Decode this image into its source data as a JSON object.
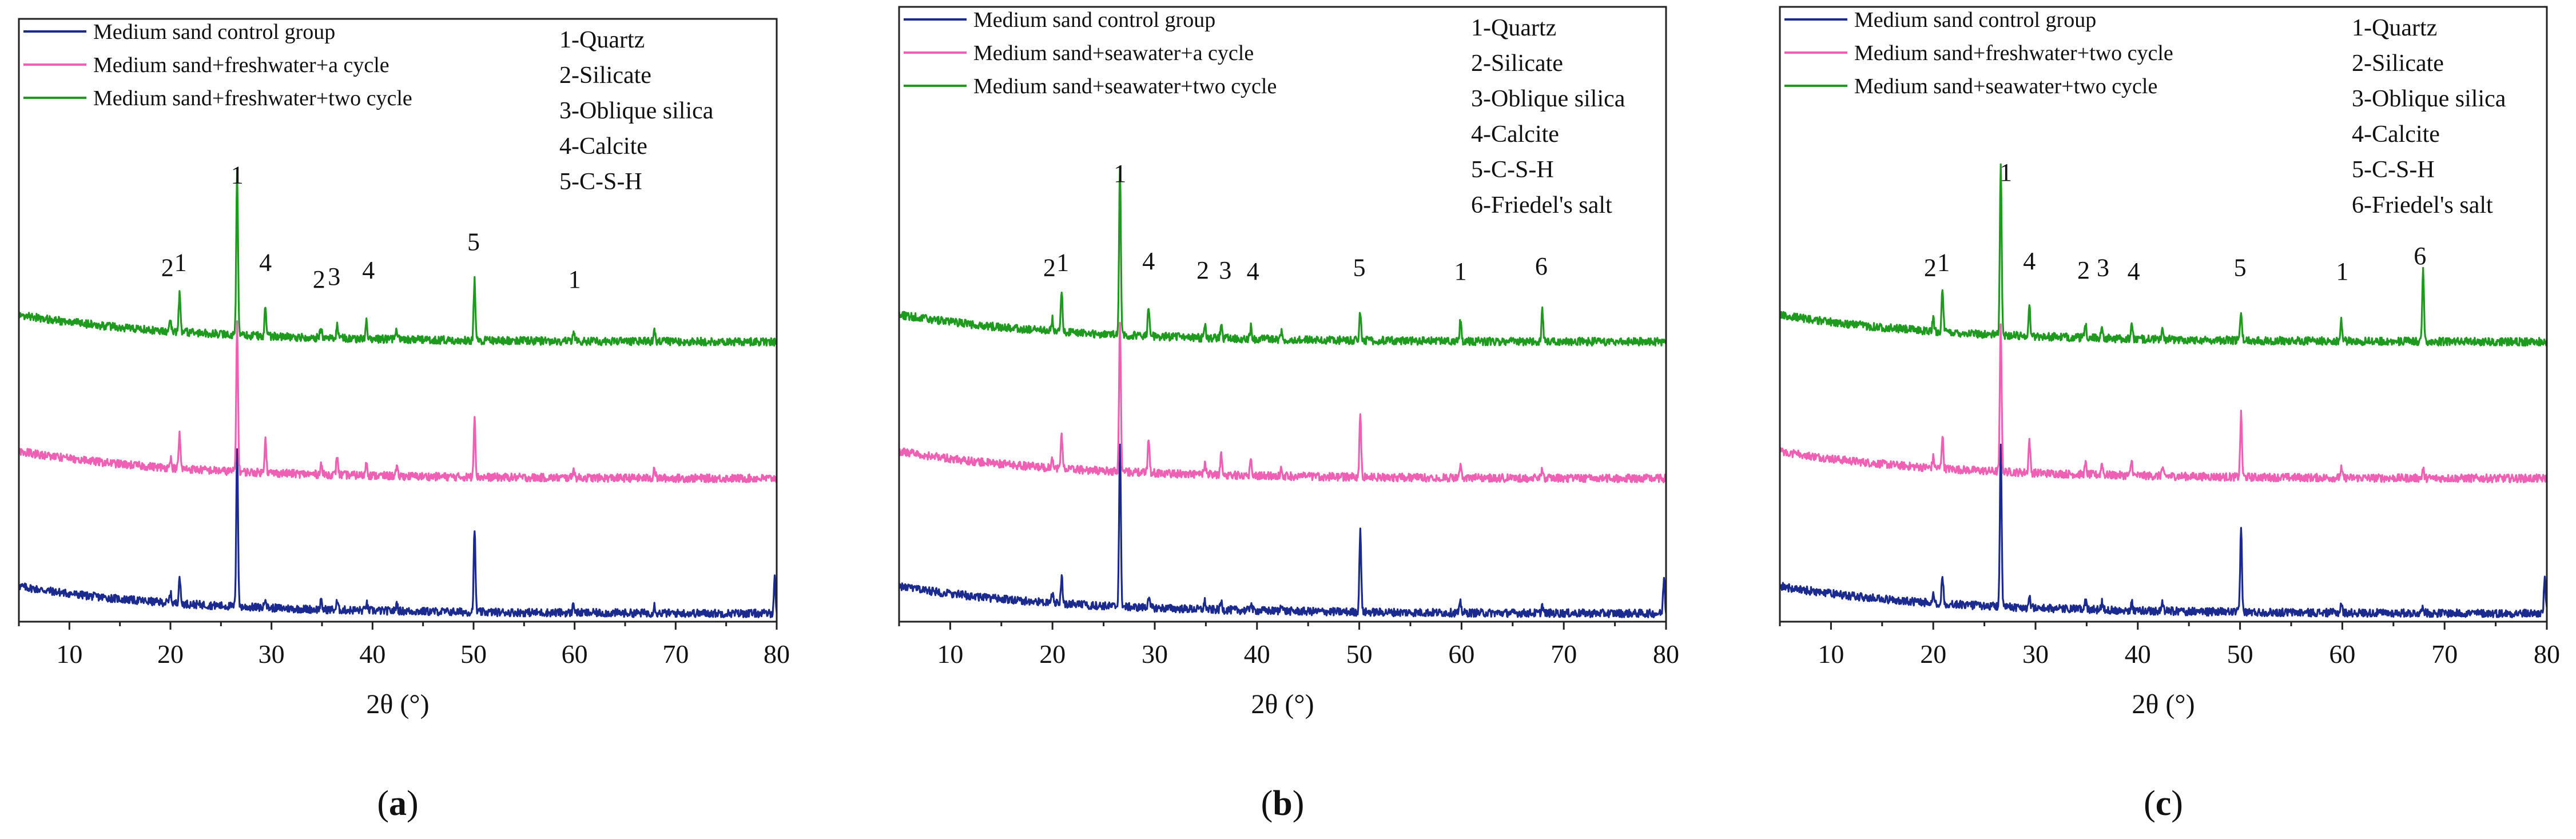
{
  "chart_data": [
    {
      "type": "line",
      "panel_label_prefix": "(",
      "panel_label_letter": "a",
      "panel_label_suffix": ")",
      "xlabel": "2θ (°)",
      "ylabel": "",
      "xlim": [
        5,
        80
      ],
      "xticks": [
        "10",
        "20",
        "30",
        "40",
        "50",
        "60",
        "70",
        "80"
      ],
      "legend": [
        {
          "name": "Medium sand control group",
          "color": "#1b2a8f"
        },
        {
          "name": "Medium sand+freshwater+a cycle",
          "color": "#ef5fb3"
        },
        {
          "name": "Medium sand+freshwater+two cycle",
          "color": "#1e9a1e"
        }
      ],
      "phases": [
        "1-Quartz",
        "2-Silicate",
        "3-Oblique silica",
        "4-Calcite",
        "5-C-S-H"
      ],
      "series": [
        {
          "name": "Medium sand control group",
          "color": "#1b2a8f",
          "offset": 0,
          "peaks": [
            [
              20.0,
              0.06
            ],
            [
              20.9,
              0.17
            ],
            [
              26.6,
              1.0
            ],
            [
              29.4,
              0.07
            ],
            [
              34.9,
              0.05
            ],
            [
              36.5,
              0.05
            ],
            [
              39.4,
              0.05
            ],
            [
              42.4,
              0.05
            ],
            [
              50.1,
              0.52
            ],
            [
              59.9,
              0.06
            ],
            [
              67.9,
              0.05
            ],
            [
              79.8,
              0.22
            ]
          ]
        },
        {
          "name": "Medium sand+freshwater+a cycle",
          "color": "#ef5fb3",
          "offset": 1,
          "peaks": [
            [
              20.0,
              0.07
            ],
            [
              20.9,
              0.23
            ],
            [
              26.6,
              1.0
            ],
            [
              29.4,
              0.24
            ],
            [
              34.9,
              0.08
            ],
            [
              36.5,
              0.13
            ],
            [
              39.4,
              0.1
            ],
            [
              42.4,
              0.05
            ],
            [
              50.1,
              0.42
            ],
            [
              59.9,
              0.07
            ],
            [
              67.9,
              0.07
            ]
          ]
        },
        {
          "name": "Medium sand+freshwater+two cycle",
          "color": "#1e9a1e",
          "offset": 2,
          "peaks": [
            [
              20.0,
              0.07
            ],
            [
              20.9,
              0.22
            ],
            [
              26.6,
              0.95
            ],
            [
              29.4,
              0.17
            ],
            [
              34.9,
              0.06
            ],
            [
              36.5,
              0.07
            ],
            [
              39.4,
              0.11
            ],
            [
              42.4,
              0.05
            ],
            [
              50.1,
              0.36
            ],
            [
              59.9,
              0.05
            ],
            [
              67.9,
              0.06
            ]
          ]
        }
      ],
      "annotations": [
        {
          "text": "2",
          "x": 19.7,
          "level": 0.95
        },
        {
          "text": "1",
          "x": 21.0,
          "level": 1.05
        },
        {
          "text": "1",
          "x": 26.6,
          "level": 2.75
        },
        {
          "text": "4",
          "x": 29.4,
          "level": 1.05
        },
        {
          "text": "2",
          "x": 34.7,
          "level": 0.72
        },
        {
          "text": "3",
          "x": 36.2,
          "level": 0.78
        },
        {
          "text": "4",
          "x": 39.6,
          "level": 0.9
        },
        {
          "text": "5",
          "x": 50.0,
          "level": 1.45
        },
        {
          "text": "1",
          "x": 60.0,
          "level": 0.72
        }
      ]
    },
    {
      "type": "line",
      "panel_label_prefix": "(",
      "panel_label_letter": "b",
      "panel_label_suffix": ")",
      "xlabel": "2θ (°)",
      "ylabel": "",
      "xlim": [
        5,
        80
      ],
      "xticks": [
        "10",
        "20",
        "30",
        "40",
        "50",
        "60",
        "70",
        "80"
      ],
      "legend": [
        {
          "name": "Medium sand control group",
          "color": "#1b2a8f"
        },
        {
          "name": "Medium sand+seawater+a cycle",
          "color": "#ef5fb3"
        },
        {
          "name": "Medium sand+seawater+two cycle",
          "color": "#1e9a1e"
        }
      ],
      "phases": [
        "1-Quartz",
        "2-Silicate",
        "3-Oblique silica",
        "4-Calcite",
        "5-C-S-H",
        "6-Friedel's salt"
      ],
      "series": [
        {
          "name": "Medium sand control group",
          "color": "#1b2a8f",
          "offset": 0,
          "peaks": [
            [
              20.0,
              0.06
            ],
            [
              20.9,
              0.17
            ],
            [
              26.6,
              1.0
            ],
            [
              29.4,
              0.07
            ],
            [
              34.9,
              0.05
            ],
            [
              36.5,
              0.05
            ],
            [
              39.4,
              0.05
            ],
            [
              42.4,
              0.05
            ],
            [
              50.1,
              0.52
            ],
            [
              59.9,
              0.06
            ],
            [
              67.9,
              0.05
            ],
            [
              79.8,
              0.22
            ]
          ]
        },
        {
          "name": "Medium sand+seawater+a cycle",
          "color": "#ef5fb3",
          "offset": 1,
          "peaks": [
            [
              20.0,
              0.07
            ],
            [
              20.9,
              0.23
            ],
            [
              26.6,
              1.0
            ],
            [
              29.4,
              0.24
            ],
            [
              34.9,
              0.07
            ],
            [
              36.5,
              0.13
            ],
            [
              39.4,
              0.1
            ],
            [
              42.4,
              0.05
            ],
            [
              50.1,
              0.42
            ],
            [
              59.9,
              0.07
            ],
            [
              67.9,
              0.07
            ]
          ]
        },
        {
          "name": "Medium sand+seawater+two cycle",
          "color": "#1e9a1e",
          "offset": 2,
          "peaks": [
            [
              20.0,
              0.07
            ],
            [
              20.9,
              0.24
            ],
            [
              26.6,
              1.0
            ],
            [
              29.4,
              0.17
            ],
            [
              34.9,
              0.07
            ],
            [
              36.5,
              0.07
            ],
            [
              39.4,
              0.07
            ],
            [
              42.4,
              0.05
            ],
            [
              50.1,
              0.17
            ],
            [
              59.9,
              0.12
            ],
            [
              67.9,
              0.18
            ]
          ]
        }
      ],
      "annotations": [
        {
          "text": "2",
          "x": 19.7,
          "level": 0.95
        },
        {
          "text": "1",
          "x": 21.0,
          "level": 1.05
        },
        {
          "text": "1",
          "x": 26.6,
          "level": 2.78
        },
        {
          "text": "4",
          "x": 29.4,
          "level": 1.08
        },
        {
          "text": "2",
          "x": 34.7,
          "level": 0.9
        },
        {
          "text": "3",
          "x": 36.9,
          "level": 0.9
        },
        {
          "text": "4",
          "x": 39.6,
          "level": 0.88
        },
        {
          "text": "5",
          "x": 50.0,
          "level": 0.95
        },
        {
          "text": "1",
          "x": 59.9,
          "level": 0.88
        },
        {
          "text": "6",
          "x": 67.8,
          "level": 0.98
        }
      ]
    },
    {
      "type": "line",
      "panel_label_prefix": "(",
      "panel_label_letter": "c",
      "panel_label_suffix": ")",
      "xlabel": "2θ (°)",
      "ylabel": "",
      "xlim": [
        5,
        80
      ],
      "xticks": [
        "10",
        "20",
        "30",
        "40",
        "50",
        "60",
        "70",
        "80"
      ],
      "legend": [
        {
          "name": "Medium sand control group",
          "color": "#1b2a8f"
        },
        {
          "name": "Medium sand+freshwater+two cycle",
          "color": "#ef5fb3"
        },
        {
          "name": "Medium sand+seawater+two cycle",
          "color": "#1e9a1e"
        }
      ],
      "phases": [
        "1-Quartz",
        "2-Silicate",
        "3-Oblique silica",
        "4-Calcite",
        "5-C-S-H",
        "6-Friedel's salt"
      ],
      "series": [
        {
          "name": "Medium sand control group",
          "color": "#1b2a8f",
          "offset": 0,
          "peaks": [
            [
              20.0,
              0.06
            ],
            [
              20.9,
              0.17
            ],
            [
              26.6,
              1.0
            ],
            [
              29.4,
              0.07
            ],
            [
              34.9,
              0.05
            ],
            [
              36.5,
              0.05
            ],
            [
              39.4,
              0.05
            ],
            [
              42.4,
              0.05
            ],
            [
              50.1,
              0.52
            ],
            [
              59.9,
              0.06
            ],
            [
              67.9,
              0.05
            ],
            [
              79.8,
              0.22
            ]
          ]
        },
        {
          "name": "Medium sand+freshwater+two cycle",
          "color": "#ef5fb3",
          "offset": 1,
          "peaks": [
            [
              20.0,
              0.07
            ],
            [
              20.9,
              0.22
            ],
            [
              26.6,
              1.0
            ],
            [
              29.4,
              0.22
            ],
            [
              34.9,
              0.07
            ],
            [
              36.5,
              0.08
            ],
            [
              39.4,
              0.1
            ],
            [
              42.4,
              0.05
            ],
            [
              50.1,
              0.42
            ],
            [
              59.9,
              0.06
            ],
            [
              67.9,
              0.06
            ]
          ]
        },
        {
          "name": "Medium sand+seawater+two cycle",
          "color": "#1e9a1e",
          "offset": 2,
          "peaks": [
            [
              20.0,
              0.07
            ],
            [
              20.9,
              0.24
            ],
            [
              26.6,
              1.0
            ],
            [
              29.4,
              0.17
            ],
            [
              34.9,
              0.07
            ],
            [
              36.5,
              0.07
            ],
            [
              39.4,
              0.07
            ],
            [
              42.4,
              0.05
            ],
            [
              50.1,
              0.17
            ],
            [
              59.9,
              0.12
            ],
            [
              67.9,
              0.43
            ]
          ]
        }
      ],
      "annotations": [
        {
          "text": "2",
          "x": 19.7,
          "level": 0.95
        },
        {
          "text": "1",
          "x": 21.0,
          "level": 1.05
        },
        {
          "text": "1",
          "x": 27.1,
          "level": 2.8
        },
        {
          "text": "4",
          "x": 29.4,
          "level": 1.08
        },
        {
          "text": "2",
          "x": 34.7,
          "level": 0.9
        },
        {
          "text": "3",
          "x": 36.6,
          "level": 0.95
        },
        {
          "text": "4",
          "x": 39.6,
          "level": 0.88
        },
        {
          "text": "5",
          "x": 50.0,
          "level": 0.95
        },
        {
          "text": "1",
          "x": 60.0,
          "level": 0.88
        },
        {
          "text": "6",
          "x": 67.6,
          "level": 1.18
        }
      ]
    }
  ]
}
